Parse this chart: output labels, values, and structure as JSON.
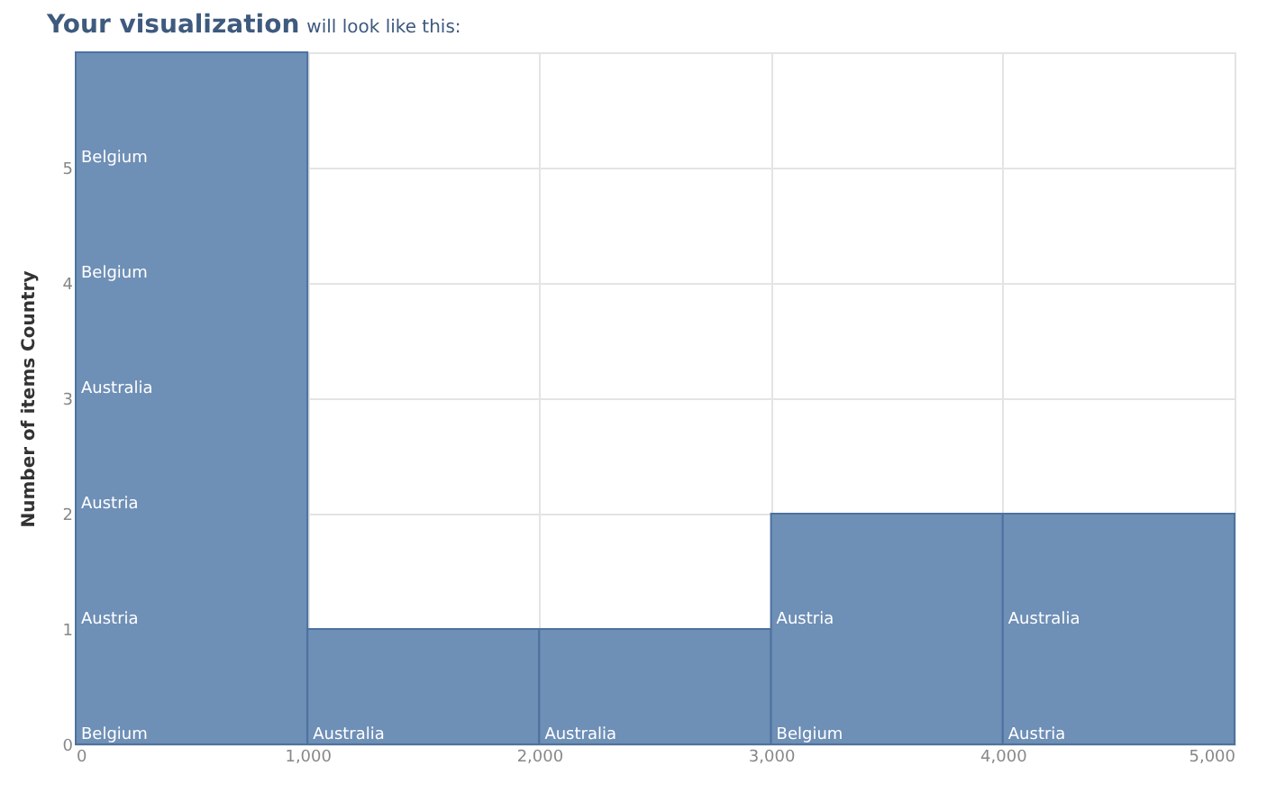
{
  "chart_data": {
    "type": "histogram",
    "title": "Your visualization",
    "subtitle": "will look like this:",
    "ylabel": "Number of items Country",
    "bins": [
      0,
      1000,
      2000,
      3000,
      4000,
      5000
    ],
    "values": [
      6,
      1,
      1,
      2,
      2
    ],
    "color": "#6e8fb6",
    "xlim": [
      0,
      5000
    ],
    "xticks": [
      0,
      {
        "value": 1000,
        "label": "1,000"
      },
      {
        "value": 2000,
        "label": "2,000"
      },
      {
        "value": 3000,
        "label": "3,000"
      },
      {
        "value": 4000,
        "label": "4,000"
      },
      {
        "value": 5000,
        "label": "5,000"
      }
    ],
    "ylim": [
      0,
      6
    ],
    "yticks": [
      0,
      1,
      2,
      3,
      4,
      5
    ],
    "grid": true,
    "annotations": [
      {
        "text": "Belgium",
        "x": 0,
        "y": 0
      },
      {
        "text": "Austria",
        "x": 0,
        "y": 1
      },
      {
        "text": "Austria",
        "x": 0,
        "y": 2
      },
      {
        "text": "Australia",
        "x": 0,
        "y": 3
      },
      {
        "text": "Belgium",
        "x": 0,
        "y": 4
      },
      {
        "text": "Belgium",
        "x": 0,
        "y": 5
      },
      {
        "text": "Australia",
        "x": 1000,
        "y": 0
      },
      {
        "text": "Australia",
        "x": 2000,
        "y": 0
      },
      {
        "text": "Belgium",
        "x": 3000,
        "y": 0
      },
      {
        "text": "Austria",
        "x": 3000,
        "y": 1
      },
      {
        "text": "Austria",
        "x": 4000,
        "y": 0
      },
      {
        "text": "Australia",
        "x": 4000,
        "y": 1
      }
    ]
  }
}
